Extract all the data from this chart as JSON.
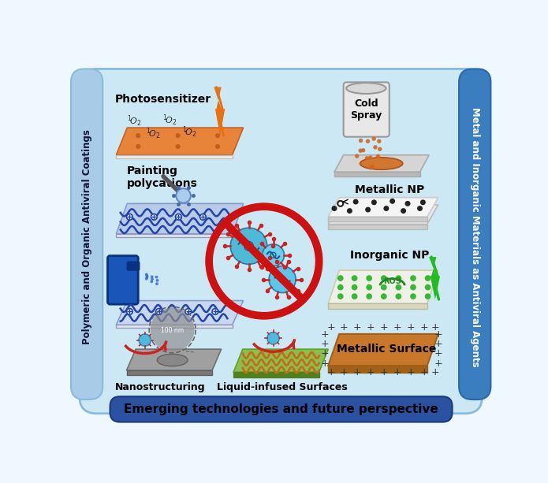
{
  "figsize": [
    6.95,
    6.13
  ],
  "dpi": 100,
  "bg_color": "#cce8f5",
  "left_bar_color": "#a8cce8",
  "right_bar_color": "#3a7ec0",
  "bottom_bar_color": "#2a52a0",
  "bottom_text": "Emerging technologies and future perspective",
  "left_text": "Polymeric and Organic Antiviral Coatings",
  "right_text": "Metal and Inorganic Materials as Antiviral Agents",
  "labels": {
    "photosensitizer": "Photosensitizer",
    "painting": "Painting\npolycations",
    "cold_spray": "Cold\nSpray",
    "metallic_np": "Metallic NP",
    "inorganic_np": "Inorganic NP",
    "metallic_surface": "Metallic Surface",
    "nanostructuring": "Nanostructuring",
    "liquid_infused": "Liquid-infused Surfaces"
  },
  "orange_color": "#e8833a",
  "blue_tray_color": "#b8cce8",
  "green_surface_color": "#8abf50",
  "brown_surface_color": "#c87828",
  "grey_surface_color": "#a0a0a0"
}
